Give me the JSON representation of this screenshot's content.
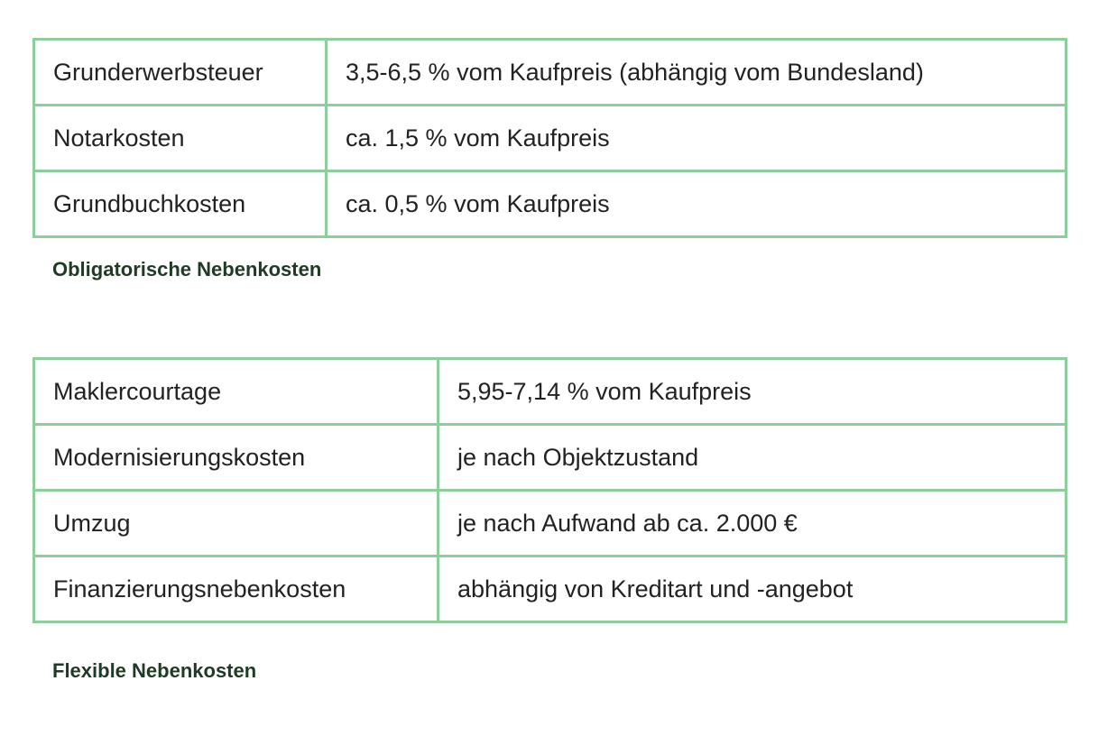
{
  "tables": [
    {
      "rows": [
        [
          "Grunderwerbsteuer",
          "3,5-6,5 % vom Kaufpreis (abhängig vom Bundesland)"
        ],
        [
          "Notarkosten",
          "ca. 1,5 % vom Kaufpreis"
        ],
        [
          "Grundbuchkosten",
          "ca. 0,5 % vom Kaufpreis"
        ]
      ],
      "caption": "Obligatorische Nebenkosten"
    },
    {
      "rows": [
        [
          "Maklercourtage",
          "5,95-7,14 % vom Kaufpreis"
        ],
        [
          "Modernisierungskosten",
          "je nach Objektzustand"
        ],
        [
          "Umzug",
          "je nach Aufwand ab ca. 2.000 €"
        ],
        [
          "Finanzierungsnebenkosten",
          "abhängig von Kreditart und -angebot"
        ]
      ],
      "caption": "Flexible Nebenkosten"
    }
  ]
}
